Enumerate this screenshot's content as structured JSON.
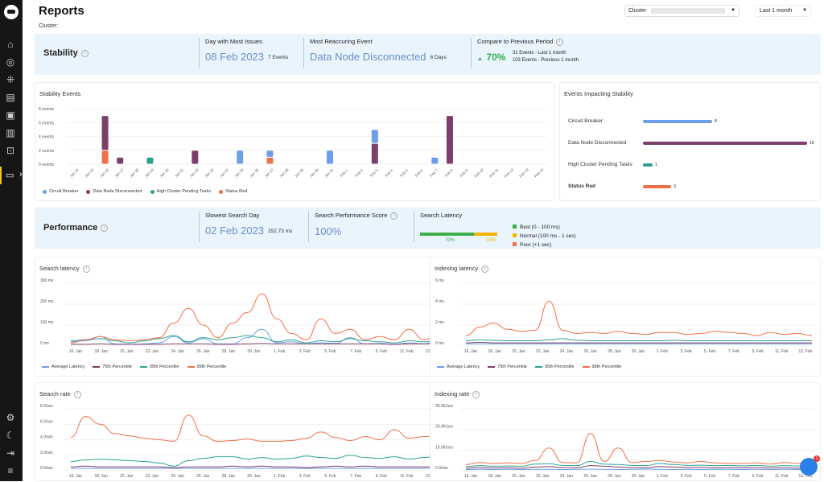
{
  "sidebar": {
    "icons": [
      "home-icon",
      "target-icon",
      "nodes-icon",
      "dashboard-icon",
      "server-icon",
      "map-icon",
      "search-report-icon",
      "reports-icon",
      "settings-icon",
      "moon-icon",
      "logout-icon",
      "menu-icon"
    ],
    "active_chevron": "›"
  },
  "header": {
    "title": "Reports",
    "cluster_label": "Cluster:",
    "cluster_select_label": "Cluster",
    "range_select": "Last 1 month"
  },
  "stability": {
    "title": "Stability",
    "day_most_issues_label": "Day with Most Issues",
    "day_most_issues_value": "08 Feb 2023",
    "day_most_issues_count": "7 Events",
    "most_recurring_label": "Most Reaccuring Event",
    "most_recurring_value": "Data Node Disconnected",
    "most_recurring_days": "6 Days",
    "compare_label": "Compare to Previous Period",
    "compare_value": "70%",
    "compare_line1": "31 Events - Last 1 month",
    "compare_line2": "103 Events - Previous 1 month"
  },
  "stability_events": {
    "title": "Stability Events",
    "legend": [
      {
        "label": "Circuit Breaker",
        "color": "#6d9eea"
      },
      {
        "label": "Data Node Disconnected",
        "color": "#7b3f6a"
      },
      {
        "label": "High Cluster Pending Tasks",
        "color": "#2aa390"
      },
      {
        "label": "Status Red",
        "color": "#f07048"
      }
    ]
  },
  "events_impacting": {
    "title": "Events Impacting Stability",
    "rows": [
      {
        "label": "Circuit Breaker",
        "value": "8",
        "color": "#6d9eea",
        "frac": 0.42
      },
      {
        "label": "Data Node Disconnected",
        "value": "19",
        "color": "#7b3f6a",
        "frac": 1.0
      },
      {
        "label": "High Cluster Pending Tasks",
        "value": "1",
        "color": "#2aa390",
        "frac": 0.06
      },
      {
        "label": "Status Red",
        "value": "3",
        "color": "#f07048",
        "frac": 0.17
      }
    ]
  },
  "performance": {
    "title": "Performance",
    "slowest_label": "Slowest Search Day",
    "slowest_value": "02 Feb 2023",
    "slowest_ms": "252.73 ms",
    "score_label": "Search Performance Score",
    "score_value": "100%",
    "latency_label": "Search Latency",
    "latency_best_pct": "70%",
    "latency_normal_pct": "30%",
    "latency_best_frac": 0.7,
    "latency_legend": [
      {
        "label": "Best (0 - 100 ms)",
        "color": "#3fae49"
      },
      {
        "label": "Normal (100 ms - 1 sec)",
        "color": "#f4b400"
      },
      {
        "label": "Poor (+1 sec)",
        "color": "#f07048"
      }
    ]
  },
  "latency_legend": [
    {
      "label": "Average Latency",
      "color": "#6d9eea"
    },
    {
      "label": "75th Percentile",
      "color": "#7b3f6a"
    },
    {
      "label": "95th Percentile",
      "color": "#2aa390"
    },
    {
      "label": "99th Percentile",
      "color": "#f07048"
    }
  ],
  "chart_data": [
    {
      "id": "stability_events",
      "type": "bar",
      "title": "Stability Events",
      "categories": [
        "Jan 14",
        "Jan 15",
        "Jan 16",
        "Jan 17",
        "Jan 18",
        "Jan 19",
        "Jan 20",
        "Jan 21",
        "Jan 22",
        "Jan 23",
        "Jan 24",
        "Jan 25",
        "Jan 26",
        "Jan 27",
        "Jan 28",
        "Jan 29",
        "Jan 30",
        "Jan 31",
        "Feb 1",
        "Feb 2",
        "Feb 3",
        "Feb 4",
        "Feb 5",
        "Feb 6",
        "Feb 7",
        "Feb 8",
        "Feb 9",
        "Feb 10",
        "Feb 11",
        "Feb 12",
        "Feb 13",
        "Feb 14"
      ],
      "yticks": [
        "0 events",
        "2 events",
        "4 events",
        "6 events",
        "8 events"
      ],
      "ylim": [
        0,
        8
      ],
      "series": [
        {
          "name": "Status Red",
          "color": "#f07048",
          "values": [
            0,
            0,
            2,
            0,
            0,
            0,
            0,
            0,
            0,
            0,
            0,
            0,
            0,
            1,
            0,
            0,
            0,
            0,
            0,
            0,
            0,
            0,
            0,
            0,
            0,
            0,
            0,
            0,
            0,
            0,
            0,
            0
          ]
        },
        {
          "name": "Data Node Disconnected",
          "color": "#7b3f6a",
          "values": [
            0,
            0,
            5,
            1,
            0,
            0,
            0,
            0,
            2,
            0,
            0,
            0,
            0,
            0,
            0,
            0,
            0,
            0,
            0,
            0,
            3,
            0,
            0,
            0,
            0,
            7,
            0,
            0,
            0,
            0,
            0,
            0
          ]
        },
        {
          "name": "High Cluster Pending Tasks",
          "color": "#2aa390",
          "values": [
            0,
            0,
            0,
            0,
            0,
            1,
            0,
            0,
            0,
            0,
            0,
            0,
            0,
            0,
            0,
            0,
            0,
            0,
            0,
            0,
            0,
            0,
            0,
            0,
            0,
            0,
            0,
            0,
            0,
            0,
            0,
            0
          ]
        },
        {
          "name": "Circuit Breaker",
          "color": "#6d9eea",
          "values": [
            0,
            0,
            0,
            0,
            0,
            0,
            0,
            0,
            0,
            0,
            0,
            2,
            0,
            1,
            0,
            0,
            0,
            2,
            0,
            0,
            2,
            0,
            0,
            0,
            1,
            0,
            0,
            0,
            0,
            0,
            0,
            0
          ]
        }
      ]
    },
    {
      "id": "search_latency",
      "type": "line",
      "title": "Search latency",
      "xticks": [
        "16. Jan",
        "18. Jan",
        "20. Jan",
        "22. Jan",
        "24. Jan",
        "26. Jan",
        "28. Jan",
        "30. Jan",
        "1. Feb",
        "3. Feb",
        "5. Feb",
        "7. Feb",
        "9. Feb",
        "11. Feb",
        "13. Feb"
      ],
      "yticks": [
        "0 ms",
        "100 ms",
        "200 ms",
        "300 ms"
      ],
      "ylim": [
        0,
        300
      ],
      "series": [
        {
          "name": "Average Latency",
          "color": "#6d9eea",
          "values": [
            20,
            25,
            45,
            10,
            8,
            10,
            15,
            45,
            15,
            35,
            10,
            10,
            40,
            80,
            15,
            20,
            10,
            15,
            12,
            40,
            10,
            12,
            8,
            15,
            10,
            30
          ]
        },
        {
          "name": "75th Percentile",
          "color": "#7b3f6a",
          "values": [
            8,
            8,
            10,
            8,
            8,
            8,
            8,
            10,
            10,
            10,
            8,
            8,
            10,
            12,
            10,
            10,
            10,
            10,
            10,
            10,
            10,
            10,
            8,
            10,
            10,
            12
          ]
        },
        {
          "name": "95th Percentile",
          "color": "#2aa390",
          "values": [
            25,
            30,
            35,
            25,
            15,
            25,
            35,
            50,
            20,
            40,
            30,
            40,
            50,
            40,
            20,
            30,
            15,
            25,
            20,
            35,
            25,
            20,
            15,
            25,
            20,
            25
          ]
        },
        {
          "name": "99th Percentile",
          "color": "#f07048",
          "values": [
            15,
            30,
            45,
            30,
            25,
            30,
            40,
            110,
            180,
            100,
            40,
            110,
            160,
            250,
            130,
            60,
            30,
            130,
            60,
            80,
            30,
            45,
            30,
            80,
            30,
            50
          ]
        }
      ]
    },
    {
      "id": "indexing_latency",
      "type": "line",
      "title": "Indexing latency",
      "xticks": [
        "16. Jan",
        "18. Jan",
        "20. Jan",
        "22. Jan",
        "24. Jan",
        "26. Jan",
        "28. Jan",
        "30. Jan",
        "1. Feb",
        "3. Feb",
        "5. Feb",
        "7. Feb",
        "9. Feb",
        "11. Feb",
        "13. Feb"
      ],
      "yticks": [
        "0 ms",
        "2 ms",
        "4 ms",
        "6 ms"
      ],
      "ylim": [
        0,
        6
      ],
      "series": [
        {
          "name": "Average Latency",
          "color": "#6d9eea",
          "values": [
            0.2,
            0.2,
            0.2,
            0.2,
            0.2,
            0.2,
            0.2,
            0.2,
            0.2,
            0.2,
            0.2,
            0.2,
            0.2,
            0.2,
            0.2,
            0.2,
            0.2,
            0.2,
            0.2,
            0.2,
            0.2,
            0.2,
            0.2,
            0.2,
            0.2,
            0.2
          ]
        },
        {
          "name": "75th Percentile",
          "color": "#7b3f6a",
          "values": [
            0.3,
            0.35,
            0.3,
            0.3,
            0.3,
            0.3,
            0.3,
            0.3,
            0.3,
            0.3,
            0.3,
            0.3,
            0.3,
            0.3,
            0.3,
            0.3,
            0.3,
            0.3,
            0.3,
            0.3,
            0.3,
            0.3,
            0.3,
            0.3,
            0.3,
            0.3
          ]
        },
        {
          "name": "95th Percentile",
          "color": "#2aa390",
          "values": [
            0.5,
            0.6,
            0.55,
            0.5,
            0.5,
            0.5,
            0.6,
            0.7,
            0.55,
            0.5,
            0.5,
            0.5,
            0.5,
            0.5,
            0.5,
            0.55,
            0.5,
            0.5,
            0.5,
            0.5,
            0.5,
            0.5,
            0.5,
            0.5,
            0.5,
            0.5
          ]
        },
        {
          "name": "99th Percentile",
          "color": "#f07048",
          "values": [
            1.0,
            1.8,
            2.2,
            1.6,
            1.4,
            1.5,
            4.3,
            1.5,
            1.2,
            1.3,
            1.2,
            1.4,
            1.2,
            1.1,
            1.3,
            1.3,
            1.1,
            1.2,
            1.4,
            1.3,
            1.2,
            1.0,
            1.3,
            1.1,
            1.2,
            1.0
          ]
        }
      ]
    },
    {
      "id": "search_rate",
      "type": "line",
      "title": "Search rate",
      "xticks": [
        "16. Jan",
        "18. Jan",
        "20. Jan",
        "22. Jan",
        "24. Jan",
        "26. Jan",
        "28. Jan",
        "30. Jan",
        "1. Feb",
        "3. Feb",
        "5. Feb",
        "7. Feb",
        "9. Feb",
        "11. Feb",
        "13. Feb"
      ],
      "yticks": [
        "0.0/sec",
        "2.0/sec",
        "4.0/sec",
        "6.0/sec",
        "8.0/sec"
      ],
      "ylim": [
        0,
        8
      ],
      "series": [
        {
          "name": "Average Latency",
          "color": "#6d9eea",
          "values": [
            0.3,
            0.3,
            0.3,
            0.3,
            0.3,
            0.3,
            0.3,
            0.3,
            0.3,
            0.3,
            0.3,
            0.3,
            0.3,
            0.3,
            0.3,
            0.3,
            0.3,
            0.3,
            0.3,
            0.3,
            0.3,
            0.3,
            0.3,
            0.3,
            0.3,
            0.3
          ]
        },
        {
          "name": "75th Percentile",
          "color": "#7b3f6a",
          "values": [
            0.5,
            0.6,
            0.5,
            0.5,
            0.5,
            0.5,
            0.5,
            0.4,
            0.5,
            0.5,
            0.5,
            0.6,
            0.5,
            0.6,
            0.5,
            0.5,
            0.4,
            0.5,
            0.6,
            0.5,
            0.6,
            0.5,
            0.5,
            0.5,
            0.5,
            0.5
          ]
        },
        {
          "name": "95th Percentile",
          "color": "#2aa390",
          "values": [
            1.2,
            1.4,
            1.5,
            1.4,
            1.3,
            1.2,
            1.0,
            0.6,
            1.3,
            1.6,
            1.8,
            1.8,
            1.5,
            1.7,
            1.5,
            1.6,
            1.9,
            1.7,
            1.6,
            2.0,
            1.7,
            1.6,
            1.8,
            1.5,
            1.7,
            1.9
          ]
        },
        {
          "name": "99th Percentile",
          "color": "#f07048",
          "values": [
            4.3,
            7.0,
            6.0,
            4.8,
            4.5,
            4.2,
            4.0,
            3.8,
            7.2,
            4.5,
            3.8,
            3.9,
            4.1,
            3.8,
            3.8,
            3.9,
            4.2,
            5.0,
            4.3,
            3.9,
            4.4,
            4.0,
            5.3,
            4.2,
            4.4,
            4.5
          ]
        }
      ]
    },
    {
      "id": "indexing_rate",
      "type": "line",
      "title": "Indexing rate",
      "xticks": [
        "16. Jan",
        "18. Jan",
        "20. Jan",
        "22. Jan",
        "24. Jan",
        "26. Jan",
        "28. Jan",
        "30. Jan",
        "1. Feb",
        "3. Feb",
        "5. Feb",
        "7. Feb",
        "9. Feb",
        "11. Feb",
        "13. Feb"
      ],
      "yticks": [
        "0.0/sec",
        "10.0K/sec",
        "20.0K/sec",
        "30.0K/sec"
      ],
      "ylim": [
        0,
        30000
      ],
      "series": [
        {
          "name": "Average Latency",
          "color": "#6d9eea",
          "values": [
            600,
            700,
            600,
            700,
            600,
            700,
            700,
            600,
            700,
            800,
            700,
            600,
            700,
            800,
            700,
            600,
            700,
            600,
            700,
            700,
            600,
            700,
            600,
            700,
            600,
            700
          ]
        },
        {
          "name": "75th Percentile",
          "color": "#7b3f6a",
          "values": [
            1200,
            1500,
            1300,
            1400,
            1200,
            1800,
            2000,
            1500,
            1400,
            2500,
            2200,
            1800,
            1500,
            1400,
            2000,
            1800,
            1500,
            1600,
            1400,
            1500,
            1400,
            1500,
            1300,
            1400,
            1200,
            1500
          ]
        },
        {
          "name": "95th Percentile",
          "color": "#2aa390",
          "values": [
            2000,
            2500,
            2200,
            2300,
            2200,
            3200,
            3400,
            2600,
            2500,
            4500,
            3200,
            3000,
            2600,
            2500,
            3500,
            3000,
            2600,
            2700,
            2500,
            2600,
            2400,
            2600,
            2200,
            2500,
            2300,
            2600
          ]
        },
        {
          "name": "99th Percentile",
          "color": "#f07048",
          "values": [
            3000,
            4000,
            3500,
            3800,
            3500,
            5000,
            11000,
            4000,
            3800,
            18000,
            4500,
            11000,
            4000,
            4500,
            5000,
            4200,
            3800,
            4500,
            3800,
            3600,
            3500,
            3800,
            3200,
            4000,
            3500,
            4800
          ]
        }
      ]
    }
  ]
}
